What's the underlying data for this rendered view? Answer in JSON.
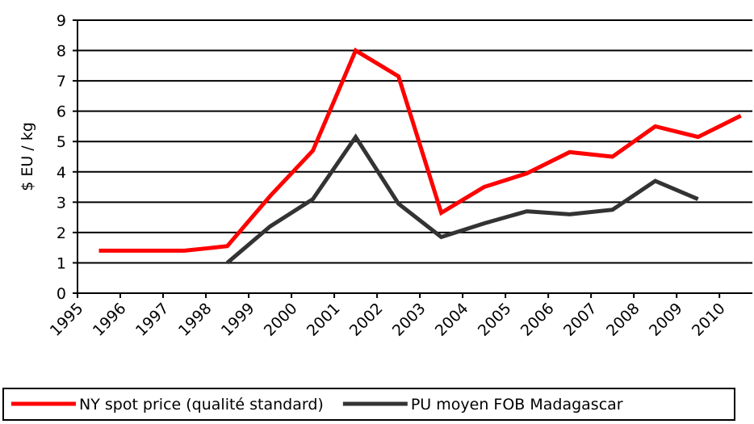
{
  "chart_data": {
    "type": "line",
    "y_label": "$ EU / kg",
    "x": [
      1995.5,
      1996.5,
      1997.5,
      1998.5,
      1999.5,
      2000.5,
      2001.5,
      2002.5,
      2003.5,
      2004.5,
      2005.5,
      2006.5,
      2007.5,
      2008.5,
      2009.5,
      2010.5
    ],
    "series": [
      {
        "name": "NY spot price (qualité standard)",
        "color": "#ff0000",
        "values": [
          1.4,
          1.4,
          1.4,
          1.55,
          3.2,
          4.7,
          8.0,
          7.15,
          2.65,
          3.5,
          3.95,
          4.65,
          4.5,
          5.5,
          5.15,
          5.85
        ]
      },
      {
        "name": "PU moyen FOB Madagascar",
        "color": "#333333",
        "values": [
          null,
          null,
          null,
          1.0,
          2.2,
          3.1,
          5.15,
          2.95,
          1.85,
          2.3,
          2.7,
          2.6,
          2.75,
          3.7,
          3.1,
          null
        ]
      }
    ],
    "xlim": [
      1995,
      2010.77
    ],
    "xticks": [
      1995,
      1996,
      1997,
      1998,
      1999,
      2000,
      2001,
      2002,
      2003,
      2004,
      2005,
      2006,
      2007,
      2008,
      2009,
      2010
    ],
    "ylim": [
      0,
      9
    ],
    "yticks": [
      0,
      1,
      2,
      3,
      4,
      5,
      6,
      7,
      8,
      9
    ],
    "grid": true,
    "legend": "bottom"
  }
}
